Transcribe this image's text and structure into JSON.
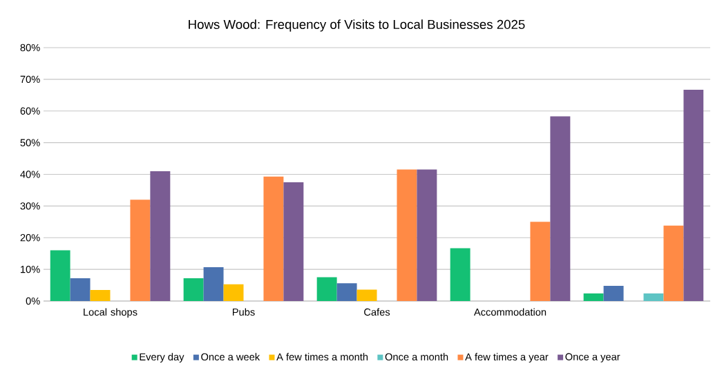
{
  "chart_data": {
    "type": "bar",
    "title": "Hows Wood: Frequency of Visits to Local Businesses 2025",
    "categories": [
      "Local shops",
      "Pubs",
      "Cafes",
      "Accommodation",
      null
    ],
    "series": [
      {
        "name": "Every day",
        "color": "#14c074",
        "values": [
          16,
          7.2,
          7.5,
          16.7,
          2.4
        ]
      },
      {
        "name": "Once a week",
        "color": "#4a72b0",
        "values": [
          7.2,
          10.7,
          5.6,
          0,
          4.8
        ]
      },
      {
        "name": "A few times a month",
        "color": "#ffc000",
        "values": [
          3.5,
          5.3,
          3.6,
          0,
          0
        ]
      },
      {
        "name": "Once a month",
        "color": "#5ec4c4",
        "values": [
          0,
          0,
          0,
          0,
          2.4
        ]
      },
      {
        "name": "A few times a year",
        "color": "#ff8a45",
        "values": [
          32,
          39.3,
          41.5,
          25,
          23.8
        ]
      },
      {
        "name": "Once a year",
        "color": "#7a5c93",
        "values": [
          41,
          37.5,
          41.5,
          58.3,
          66.7
        ]
      }
    ],
    "ylim": [
      0,
      80
    ],
    "yticks": [
      {
        "value": 0,
        "label": "0%"
      },
      {
        "value": 10,
        "label": "10%"
      },
      {
        "value": 20,
        "label": "20%"
      },
      {
        "value": 30,
        "label": "30%"
      },
      {
        "value": 40,
        "label": "40%"
      },
      {
        "value": 50,
        "label": "50%"
      },
      {
        "value": 60,
        "label": "60%"
      },
      {
        "value": 70,
        "label": "70%"
      },
      {
        "value": 80,
        "label": "80%"
      }
    ],
    "grid": "y",
    "legend": "bottom"
  }
}
